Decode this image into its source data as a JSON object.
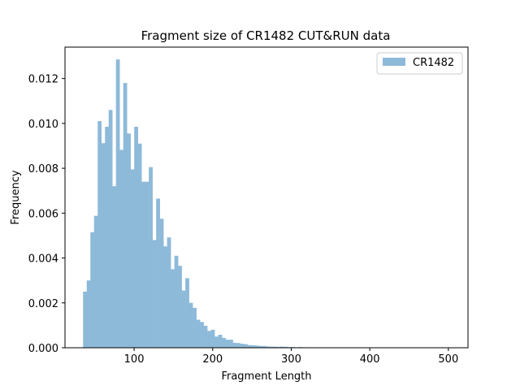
{
  "chart_data": {
    "type": "bar",
    "title": "Fragment size of CR1482 CUT&RUN data",
    "xlabel": "Fragment Length",
    "ylabel": "Frequency",
    "xlim": [
      12,
      525
    ],
    "ylim": [
      0,
      0.0134
    ],
    "xticks": [
      100,
      200,
      300,
      400,
      500
    ],
    "xtick_labels": [
      "100",
      "200",
      "300",
      "400",
      "500"
    ],
    "yticks": [
      0,
      0.002,
      0.004,
      0.006,
      0.008,
      0.01,
      0.012
    ],
    "ytick_labels": [
      "0.000",
      "0.002",
      "0.004",
      "0.006",
      "0.008",
      "0.010",
      "0.012"
    ],
    "bin_width": 4.65,
    "grid": false,
    "legend_position": "top-right",
    "series": [
      {
        "name": "CR1482",
        "color": "#8ebad9",
        "bin_start": 35,
        "values": [
          0.0025,
          0.003,
          0.00515,
          0.00588,
          0.0101,
          0.00912,
          0.00985,
          0.0106,
          0.0072,
          0.01285,
          0.00882,
          0.0118,
          0.00955,
          0.00795,
          0.00985,
          0.0091,
          0.0074,
          0.0074,
          0.00805,
          0.0048,
          0.00665,
          0.00575,
          0.00452,
          0.00492,
          0.0035,
          0.0041,
          0.00365,
          0.00255,
          0.0031,
          0.002,
          0.00178,
          0.00125,
          0.00115,
          0.00098,
          0.00075,
          0.0008,
          0.0005,
          0.00058,
          0.00044,
          0.00036,
          0.00036,
          0.00022,
          0.00021,
          0.00018,
          0.00016,
          0.00012,
          0.00011,
          0.0001,
          8e-05,
          8e-05,
          6e-05,
          5e-05,
          5e-05,
          4e-05,
          5e-05,
          4e-05,
          3e-05,
          3e-05,
          2e-05,
          3e-05,
          2e-05,
          2e-05,
          2e-05,
          2e-05,
          1e-05,
          1e-05,
          1e-05,
          1e-05,
          1e-05,
          1e-05,
          1e-05,
          1e-05,
          1e-05,
          1e-05,
          1e-05,
          1e-05,
          1e-05,
          1e-05,
          1e-05,
          1e-05,
          1e-05,
          1e-05,
          1e-05,
          1e-05,
          1e-05,
          1e-05,
          1e-05,
          1e-05,
          1e-05,
          1e-05,
          1e-05,
          1e-05,
          1e-05,
          1e-05,
          1e-05,
          1e-05,
          1e-05,
          1e-05,
          1e-05,
          1e-05
        ]
      }
    ]
  }
}
